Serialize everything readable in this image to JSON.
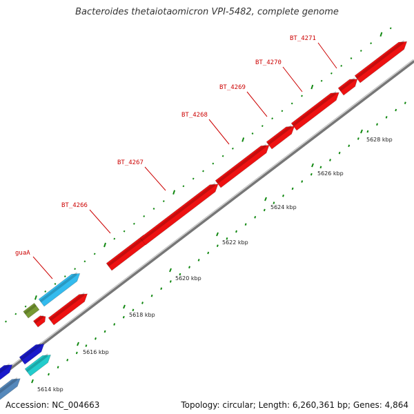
{
  "title": "Bacteroides thetaiotaomicron VPI-5482, complete genome",
  "footer": {
    "accession": "Accession: NC_004663",
    "summary": "Topology: circular; Length: 6,260,361 bp; Genes: 4,864"
  },
  "colors": {
    "cds": "#ee1111",
    "light_blue": "#33bbee",
    "olive": "#779933",
    "blue": "#1a1acc",
    "cyan": "#22cccc",
    "steel": "#5588bb",
    "label": "#cc0000",
    "tick": "#118811"
  },
  "ticks": [
    "5614 kbp",
    "5616 kbp",
    "5618 kbp",
    "5620 kbp",
    "5622 kbp",
    "5624 kbp",
    "5626 kbp",
    "5628 kbp"
  ],
  "genes": [
    "guaA",
    "BT_4266",
    "BT_4267",
    "BT_4268",
    "BT_4269",
    "BT_4270",
    "BT_4271"
  ]
}
